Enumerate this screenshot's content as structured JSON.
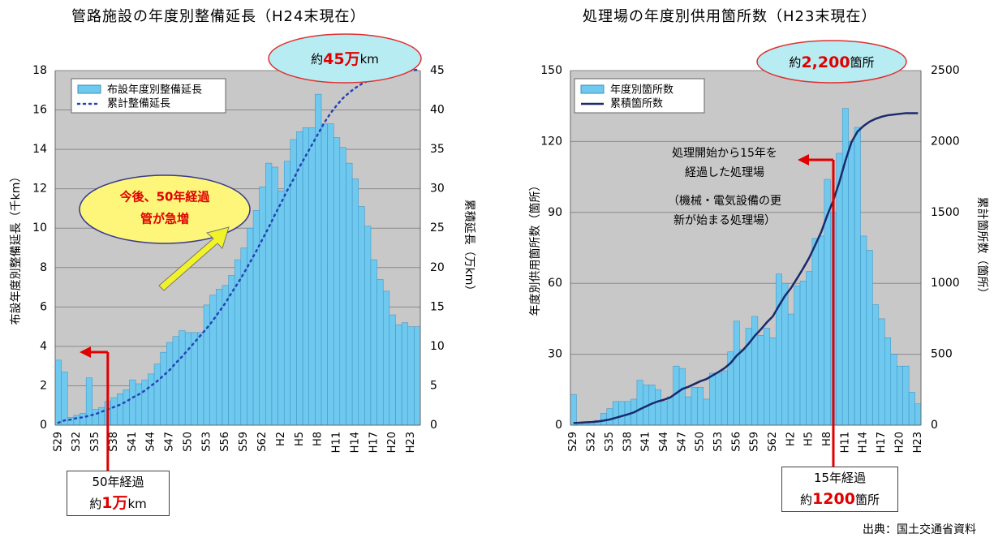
{
  "colors": {
    "bar": "#6fc9ef",
    "bar_stroke": "#3a8fc0",
    "cum_left": "#2444b5",
    "cum_right": "#1a2a6c",
    "plot_bg": "#c8c8c8",
    "arrow_red": "#e00000",
    "highlight_bg": "#b8ecf3",
    "callout_yellow": "#fdf67a"
  },
  "left": {
    "title": "管路施設の年度別整備延長（H24末現在）",
    "ylabel_left": "布設年度別整備延長（千km）",
    "ylabel_right": "累積延長（万km）",
    "yticks_left": [
      "0",
      "2",
      "4",
      "6",
      "8",
      "10",
      "12",
      "14",
      "16",
      "18"
    ],
    "yticks_right": [
      "0",
      "5",
      "10",
      "15",
      "20",
      "25",
      "30",
      "35",
      "40",
      "45"
    ],
    "legend_bar": "布設年度別整備延長",
    "legend_line": "累計整備延長",
    "highlight": {
      "prefix": "約",
      "value": "45万",
      "suffix": "km"
    },
    "callout_line1": "今後、50年経過",
    "callout_line2": "管が急増",
    "box_line1": "50年経過",
    "box_prefix": "約",
    "box_value": "1万",
    "box_suffix": "km"
  },
  "right": {
    "title": "処理場の年度別供用箇所数（H23末現在）",
    "ylabel_left": "年度別供用箇所数（箇所）",
    "ylabel_right": "累計箇所数（箇所）",
    "yticks_left": [
      "0",
      "30",
      "60",
      "90",
      "120",
      "150"
    ],
    "yticks_right": [
      "0",
      "500",
      "1000",
      "1500",
      "2000",
      "2500"
    ],
    "legend_bar": "年度別箇所数",
    "legend_line": "累積箇所数",
    "highlight": {
      "prefix": "約",
      "value": "2,200",
      "suffix": "箇所"
    },
    "annotation_1": "処理開始から15年を",
    "annotation_2": "経過した処理場",
    "annotation_3": "（機械・電気設備の更",
    "annotation_4": "新が始まる処理場）",
    "box_line1": "15年経過",
    "box_prefix": "約",
    "box_value": "1200",
    "box_suffix": "箇所"
  },
  "source": "出典：国土交通省資料",
  "chart_data": [
    {
      "type": "bar",
      "title": "管路施設の年度別整備延長（H24末現在）",
      "ylabel": "布設年度別整備延長（千km）",
      "y2label": "累積延長（万km）",
      "ylim": [
        0,
        18
      ],
      "y2lim": [
        0,
        45
      ],
      "categories": [
        "S29",
        "S30",
        "S31",
        "S32",
        "S33",
        "S34",
        "S35",
        "S36",
        "S37",
        "S38",
        "S39",
        "S40",
        "S41",
        "S42",
        "S43",
        "S44",
        "S45",
        "S46",
        "S47",
        "S48",
        "S49",
        "S50",
        "S51",
        "S52",
        "S53",
        "S54",
        "S55",
        "S56",
        "S57",
        "S58",
        "S59",
        "S60",
        "S61",
        "S62",
        "S63",
        "H1",
        "H2",
        "H3",
        "H4",
        "H5",
        "H6",
        "H7",
        "H8",
        "H9",
        "H10",
        "H11",
        "H12",
        "H13",
        "H14",
        "H15",
        "H16",
        "H17",
        "H18",
        "H19",
        "H20",
        "H21",
        "H22",
        "H23",
        "H24"
      ],
      "tick_labels": [
        "S29",
        "S32",
        "S35",
        "S38",
        "S41",
        "S44",
        "S47",
        "S50",
        "S53",
        "S56",
        "S59",
        "S62",
        "H2",
        "H5",
        "H8",
        "H11",
        "H14",
        "H17",
        "H20",
        "H23"
      ],
      "series": [
        {
          "name": "布設年度別整備延長",
          "kind": "bar",
          "axis": "left",
          "values": [
            3.3,
            2.7,
            0.4,
            0.5,
            0.6,
            2.4,
            0.8,
            0.9,
            1.2,
            1.4,
            1.6,
            1.8,
            2.3,
            2.1,
            2.3,
            2.6,
            3.1,
            3.7,
            4.2,
            4.5,
            4.8,
            4.7,
            4.7,
            4.7,
            6.1,
            6.6,
            6.9,
            7.1,
            7.6,
            8.4,
            9.0,
            10.0,
            10.9,
            12.1,
            13.3,
            13.1,
            11.9,
            13.4,
            14.5,
            14.9,
            15.1,
            15.1,
            16.8,
            15.3,
            15.3,
            14.6,
            14.1,
            13.3,
            12.5,
            11.1,
            10.1,
            8.4,
            7.4,
            6.8,
            5.6,
            5.1,
            5.2,
            5.0,
            5.0
          ]
        },
        {
          "name": "累計整備延長",
          "kind": "line",
          "axis": "right",
          "values": [
            0.3,
            0.6,
            0.7,
            0.9,
            1.0,
            1.2,
            1.4,
            1.7,
            2.0,
            2.3,
            2.6,
            3.0,
            3.5,
            3.9,
            4.4,
            5.0,
            5.6,
            6.3,
            7.0,
            7.9,
            8.7,
            9.6,
            10.5,
            11.4,
            12.3,
            13.3,
            14.4,
            15.5,
            16.8,
            18.0,
            19.3,
            20.7,
            22.1,
            23.6,
            25.1,
            26.7,
            28.2,
            29.8,
            31.2,
            32.8,
            34.2,
            35.6,
            37.0,
            38.4,
            39.6,
            40.6,
            41.5,
            42.2,
            42.8,
            43.3,
            43.7,
            44.0,
            44.3,
            44.5,
            44.7,
            44.8,
            44.9,
            45.0,
            45.1
          ]
        }
      ]
    },
    {
      "type": "bar",
      "title": "処理場の年度別供用箇所数（H23末現在）",
      "ylabel": "年度別供用箇所数（箇所）",
      "y2label": "累計箇所数（箇所）",
      "ylim": [
        0,
        150
      ],
      "y2lim": [
        0,
        2500
      ],
      "categories": [
        "S29",
        "S30",
        "S31",
        "S32",
        "S33",
        "S34",
        "S35",
        "S36",
        "S37",
        "S38",
        "S39",
        "S40",
        "S41",
        "S42",
        "S43",
        "S44",
        "S45",
        "S46",
        "S47",
        "S48",
        "S49",
        "S50",
        "S51",
        "S52",
        "S53",
        "S54",
        "S55",
        "S56",
        "S57",
        "S58",
        "S59",
        "S60",
        "S61",
        "S62",
        "S63",
        "H1",
        "H2",
        "H3",
        "H4",
        "H5",
        "H6",
        "H7",
        "H8",
        "H9",
        "H10",
        "H11",
        "H12",
        "H13",
        "H14",
        "H15",
        "H16",
        "H17",
        "H18",
        "H19",
        "H20",
        "H21",
        "H22",
        "H23"
      ],
      "tick_labels": [
        "S29",
        "S32",
        "S35",
        "S38",
        "S41",
        "S44",
        "S47",
        "S50",
        "S53",
        "S56",
        "S59",
        "S62",
        "H2",
        "H5",
        "H8",
        "H11",
        "H14",
        "H17",
        "H20",
        "H23"
      ],
      "series": [
        {
          "name": "年度別箇所数",
          "kind": "bar",
          "axis": "left",
          "values": [
            13,
            1,
            1,
            1,
            2,
            5,
            7,
            10,
            10,
            10,
            11,
            19,
            17,
            17,
            15,
            10,
            12,
            25,
            24,
            12,
            16,
            16,
            11,
            22,
            22,
            23,
            31,
            44,
            32,
            41,
            46,
            38,
            41,
            37,
            64,
            60,
            47,
            59,
            61,
            65,
            79,
            80,
            104,
            90,
            115,
            134,
            120,
            126,
            80,
            74,
            51,
            45,
            37,
            30,
            25,
            25,
            14,
            9
          ]
        },
        {
          "name": "累積箇所数",
          "kind": "line",
          "axis": "right",
          "values": [
            15,
            17,
            20,
            22,
            26,
            32,
            40,
            52,
            64,
            76,
            90,
            112,
            132,
            152,
            168,
            180,
            195,
            225,
            255,
            270,
            290,
            310,
            325,
            350,
            375,
            402,
            438,
            490,
            528,
            575,
            630,
            675,
            725,
            768,
            842,
            912,
            967,
            1035,
            1105,
            1180,
            1270,
            1362,
            1480,
            1585,
            1715,
            1865,
            1995,
            2070,
            2110,
            2140,
            2160,
            2175,
            2185,
            2190,
            2195,
            2200,
            2200,
            2200
          ]
        }
      ]
    }
  ]
}
